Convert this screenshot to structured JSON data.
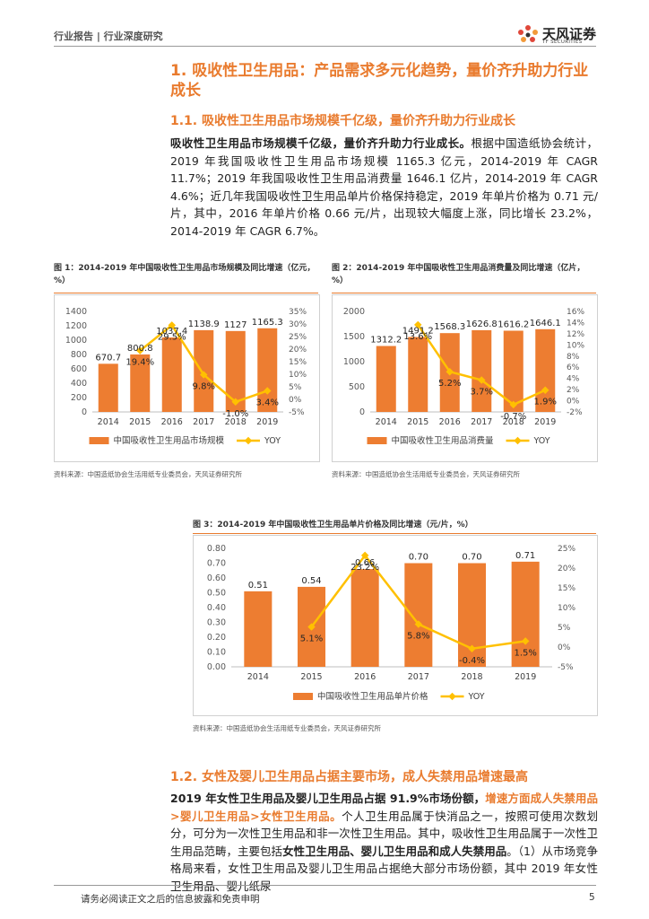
{
  "header": {
    "left_text": "行业报告 | 行业深度研究",
    "logo_cn": "天风证券",
    "logo_en": "TF SECURITIES"
  },
  "section1": {
    "title": "1. 吸收性卫生用品：产品需求多元化趋势，量价齐升助力行业成长",
    "sub_title": "1.1. 吸收性卫生用品市场规模千亿级，量价齐升助力行业成长",
    "para_lead": "吸收性卫生用品市场规模千亿级，量价齐升助力行业成长。",
    "para_body": "根据中国造纸协会统计，2019 年我国吸收性卫生用品市场规模 1165.3 亿元，2014-2019 年 CAGR 11.7%；2019 年我国吸收性卫生用品消费量 1646.1 亿片，2014-2019 年 CAGR 4.6%；近几年我国吸收性卫生用品单片价格保持稳定，2019 年单片价格为 0.71 元/片，其中，2016 年单片价格 0.66 元/片，出现较大幅度上涨，同比增长 23.2%，2014-2019 年 CAGR 6.7%。"
  },
  "figures": {
    "fig1": {
      "title": "图 1：2014-2019 年中国吸收性卫生用品市场规模及同比增速（亿元，%）",
      "source": "资料来源：中国造纸协会生活用纸专业委员会，天风证券研究所"
    },
    "fig2": {
      "title": "图 2：2014-2019 年中国吸收性卫生用品消费量及同比增速（亿片，%）",
      "source": "资料来源：中国造纸协会生活用纸专业委员会，天风证券研究所"
    },
    "fig3": {
      "title": "图 3：2014-2019 年中国吸收性卫生用品单片价格及同比增速（元/片，%）",
      "source": "资料来源：中国造纸协会生活用纸专业委员会，天风证券研究所"
    }
  },
  "chart_data": [
    {
      "type": "bar",
      "categories": [
        "2014",
        "2015",
        "2016",
        "2017",
        "2018",
        "2019"
      ],
      "series": [
        {
          "name": "中国吸收性卫生用品市场规模",
          "values": [
            670.7,
            800.8,
            1037.4,
            1138.9,
            1127,
            1165.3
          ],
          "labels": [
            "670.7",
            "800.8",
            "1037.4",
            "1138.9",
            "1127",
            "1165.3"
          ]
        },
        {
          "name": "YOY",
          "type": "line",
          "values": [
            null,
            19.4,
            29.5,
            9.8,
            -1.0,
            3.4
          ],
          "labels": [
            "",
            "19.4%",
            "29.5%",
            "9.8%",
            "-1.0%",
            "3.4%"
          ]
        }
      ],
      "ylim": [
        0,
        1400
      ],
      "yticks": [
        "0",
        "200",
        "400",
        "600",
        "800",
        "1000",
        "1200",
        "1400"
      ],
      "y2lim": [
        -5,
        35
      ],
      "y2ticks": [
        "-5%",
        "0%",
        "5%",
        "10%",
        "15%",
        "20%",
        "25%",
        "30%",
        "35%"
      ],
      "legend": [
        "中国吸收性卫生用品市场规模",
        "YOY"
      ]
    },
    {
      "type": "bar",
      "categories": [
        "2014",
        "2015",
        "2016",
        "2017",
        "2018",
        "2019"
      ],
      "series": [
        {
          "name": "中国吸收性卫生用品消费量",
          "values": [
            1312.2,
            1491.2,
            1568.3,
            1626.8,
            1616.2,
            1646.1
          ],
          "labels": [
            "1312.2",
            "1491.2",
            "1568.3",
            "1626.8",
            "1616.2",
            "1646.1"
          ]
        },
        {
          "name": "YOY",
          "type": "line",
          "values": [
            null,
            13.6,
            5.2,
            3.7,
            -0.7,
            1.9
          ],
          "labels": [
            "",
            "13.6%",
            "5.2%",
            "3.7%",
            "-0.7%",
            "1.9%"
          ]
        }
      ],
      "ylim": [
        0,
        2000
      ],
      "yticks": [
        "0",
        "500",
        "1000",
        "1500",
        "2000"
      ],
      "y2lim": [
        -2,
        16
      ],
      "y2ticks": [
        "-2%",
        "0%",
        "2%",
        "4%",
        "6%",
        "8%",
        "10%",
        "12%",
        "14%",
        "16%"
      ],
      "legend": [
        "中国吸收性卫生用品消费量",
        "YOY"
      ]
    },
    {
      "type": "bar",
      "categories": [
        "2014",
        "2015",
        "2016",
        "2017",
        "2018",
        "2019"
      ],
      "series": [
        {
          "name": "中国吸收性卫生用品单片价格",
          "values": [
            0.51,
            0.54,
            0.66,
            0.7,
            0.7,
            0.71
          ],
          "labels": [
            "0.51",
            "0.54",
            "0.66",
            "0.70",
            "0.70",
            "0.71"
          ]
        },
        {
          "name": "YOY",
          "type": "line",
          "values": [
            null,
            5.1,
            23.2,
            5.8,
            -0.4,
            1.5
          ],
          "labels": [
            "",
            "5.1%",
            "23.2%",
            "5.8%",
            "-0.4%",
            "1.5%"
          ]
        }
      ],
      "ylim": [
        0,
        0.8
      ],
      "yticks": [
        "0.00",
        "0.10",
        "0.20",
        "0.30",
        "0.40",
        "0.50",
        "0.60",
        "0.70",
        "0.80"
      ],
      "y2lim": [
        -5,
        25
      ],
      "y2ticks": [
        "-5%",
        "0%",
        "5%",
        "10%",
        "15%",
        "20%",
        "25%"
      ],
      "legend": [
        "中国吸收性卫生用品单片价格",
        "YOY"
      ]
    }
  ],
  "section2": {
    "sub_title": "1.2. 女性及婴儿卫生用品占据主要市场，成人失禁用品增速最高",
    "p_bold1": "2019 年女性卫生用品及婴儿卫生用品占据 91.9%市场份额，",
    "p_orange1": "增速方面成人失禁用品>婴儿卫生用品>女性卫生用品。",
    "p_text1": "个人卫生用品属于快消品之一，按照可使用次数划分，可分为一次性卫生用品和非一次性卫生用品。其中，吸收性卫生用品属于一次性卫生用品范畴，主要包括",
    "p_bold2": "女性卫生用品、婴儿卫生用品和成人失禁用品",
    "p_text2": "。（1）从市场竞争格局来看，女性卫生用品及婴儿卫生用品占据绝大部分市场份额，其中 2019 年女性卫生用品、婴儿纸尿"
  },
  "footer": {
    "disclaimer": "请务必阅读正文之后的信息披露和免责申明",
    "page_number": "5"
  },
  "colors": {
    "accent": "#e97b2e",
    "bar": "#ed7d31",
    "line": "#ffc000"
  }
}
